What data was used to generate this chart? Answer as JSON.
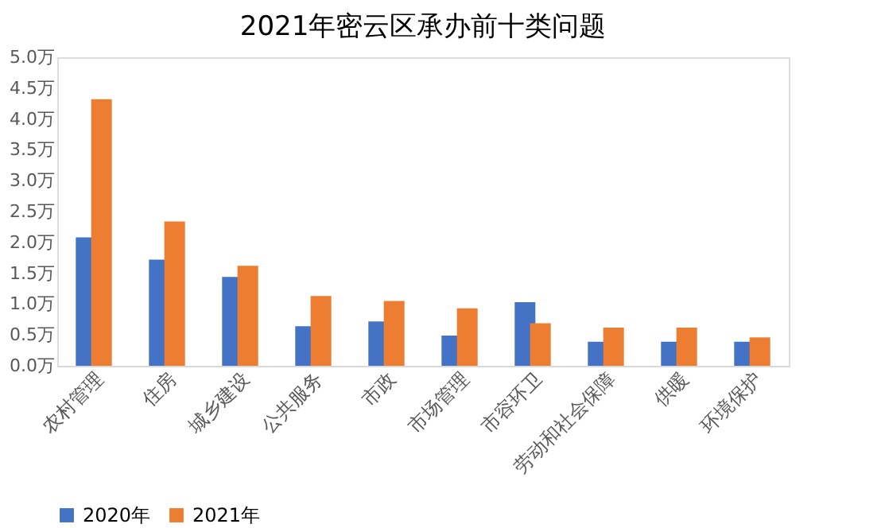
{
  "chart_data": {
    "type": "bar",
    "title": "2021年密云区承办前十类问题",
    "categories": [
      "农村管理",
      "住房",
      "城乡建设",
      "公共服务",
      "市政",
      "市场管理",
      "市容环卫",
      "劳动和社会保障",
      "供暖",
      "环境保护"
    ],
    "series": [
      {
        "name": "2020年",
        "color": "#4472c4",
        "values": [
          2.08,
          1.72,
          1.44,
          0.64,
          0.72,
          0.49,
          1.03,
          0.39,
          0.39,
          0.39
        ]
      },
      {
        "name": "2021年",
        "color": "#ed7d31",
        "values": [
          4.32,
          2.34,
          1.62,
          1.13,
          1.05,
          0.93,
          0.69,
          0.62,
          0.62,
          0.46
        ]
      }
    ],
    "ylim": [
      0,
      5
    ],
    "yticks": [
      {
        "value": 0,
        "label": "0.0万"
      },
      {
        "value": 0.5,
        "label": "0.5万"
      },
      {
        "value": 1,
        "label": "1.0万"
      },
      {
        "value": 1.5,
        "label": "1.5万"
      },
      {
        "value": 2,
        "label": "2.0万"
      },
      {
        "value": 2.5,
        "label": "2.5万"
      },
      {
        "value": 3,
        "label": "3.0万"
      },
      {
        "value": 3.5,
        "label": "3.5万"
      },
      {
        "value": 4,
        "label": "4.0万"
      },
      {
        "value": 4.5,
        "label": "4.5万"
      },
      {
        "value": 5,
        "label": "5.0万"
      }
    ],
    "grid": false,
    "legend": "bottom"
  }
}
